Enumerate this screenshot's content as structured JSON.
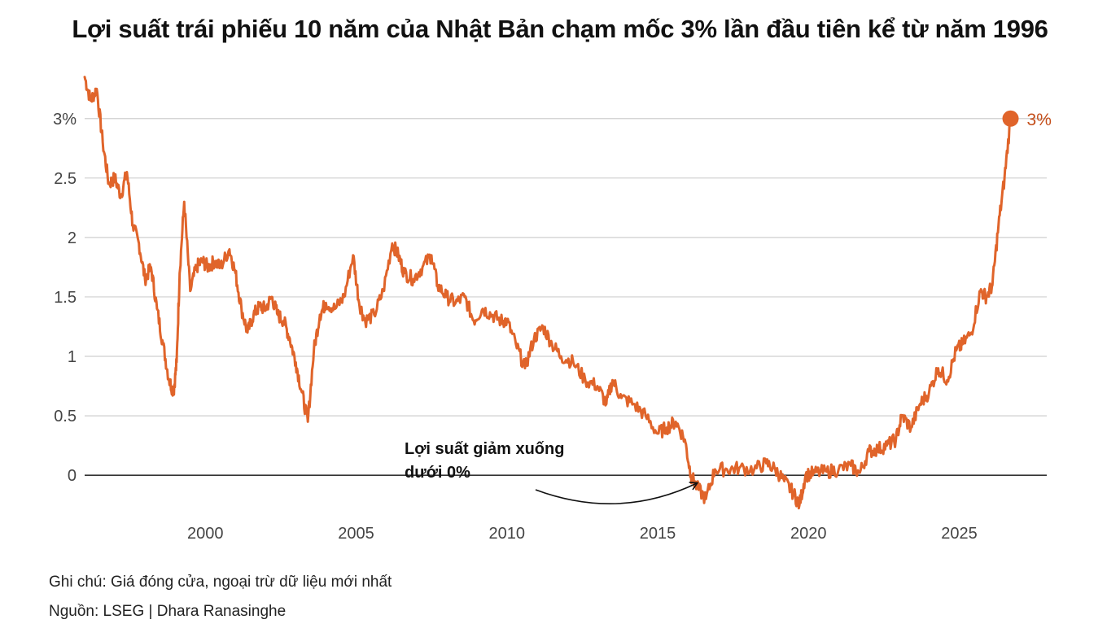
{
  "title": "Lợi suất trái phiếu 10 năm của Nhật Bản chạm mốc 3% lần đầu tiên kể từ năm 1996",
  "notes": {
    "note": "Ghi chú: Giá đóng cửa, ngoại trừ dữ liệu mới nhất",
    "source": "Nguồn: LSEG | Dhara Ranasinghe"
  },
  "annotation": {
    "line1": "Lợi suất giảm xuống",
    "line2": "dưới 0%"
  },
  "colors": {
    "series": "#e0642a",
    "end_label": "#c44e1a",
    "grid": "#cfcfcf",
    "zero_line": "#333333"
  },
  "chart_data": {
    "type": "line",
    "title": "Lợi suất trái phiếu 10 năm của Nhật Bản chạm mốc 3% lần đầu tiên kể từ năm 1996",
    "xlim": [
      1996.0,
      2027.9
    ],
    "ylim": [
      -0.3,
      3.45
    ],
    "x_ticks": [
      2000,
      2005,
      2010,
      2015,
      2020,
      2025
    ],
    "y_ticks": [
      {
        "value": 3,
        "label": "3%"
      },
      {
        "value": 2.5,
        "label": "2.5"
      },
      {
        "value": 2,
        "label": "2"
      },
      {
        "value": 1.5,
        "label": "1.5"
      },
      {
        "value": 1,
        "label": "1"
      },
      {
        "value": 0.5,
        "label": "0.5"
      },
      {
        "value": 0,
        "label": "0"
      }
    ],
    "grid": true,
    "end_label": "3%",
    "series": [
      {
        "x": [
          1996.0,
          1996.2,
          1996.4,
          1996.6,
          1996.8,
          1997.0,
          1997.2,
          1997.4,
          1997.6,
          1997.8,
          1998.0,
          1998.2,
          1998.4,
          1998.6,
          1998.8,
          1998.95,
          1999.05,
          1999.15,
          1999.3,
          1999.5,
          1999.7,
          1999.9,
          2000.1,
          2000.3,
          2000.5,
          2000.8,
          2001.0,
          2001.2,
          2001.4,
          2001.6,
          2001.8,
          2002.0,
          2002.2,
          2002.4,
          2002.6,
          2002.8,
          2003.0,
          2003.2,
          2003.4,
          2003.6,
          2003.8,
          2004.0,
          2004.3,
          2004.6,
          2004.9,
          2005.1,
          2005.3,
          2005.6,
          2005.9,
          2006.2,
          2006.4,
          2006.6,
          2006.9,
          2007.2,
          2007.5,
          2007.7,
          2008.0,
          2008.3,
          2008.6,
          2008.9,
          2009.2,
          2009.5,
          2009.8,
          2010.0,
          2010.3,
          2010.6,
          2010.9,
          2011.2,
          2011.5,
          2011.8,
          2012.2,
          2012.6,
          2013.0,
          2013.3,
          2013.5,
          2013.8,
          2014.2,
          2014.6,
          2015.0,
          2015.3,
          2015.6,
          2015.9,
          2016.1,
          2016.3,
          2016.6,
          2016.9,
          2017.3,
          2017.7,
          2018.2,
          2018.6,
          2018.9,
          2019.2,
          2019.5,
          2019.7,
          2019.9,
          2020.2,
          2020.6,
          2021.0,
          2021.4,
          2021.7,
          2022.0,
          2022.3,
          2022.6,
          2022.9,
          2023.1,
          2023.4,
          2023.7,
          2024.0,
          2024.3,
          2024.6,
          2024.9,
          2025.1,
          2025.4,
          2025.7,
          2025.9,
          2026.1,
          2026.3,
          2026.5,
          2026.7
        ],
        "y": [
          3.35,
          3.15,
          3.25,
          2.8,
          2.45,
          2.5,
          2.35,
          2.55,
          2.1,
          1.95,
          1.65,
          1.75,
          1.4,
          1.1,
          0.8,
          0.7,
          0.95,
          1.7,
          2.3,
          1.55,
          1.75,
          1.8,
          1.75,
          1.8,
          1.75,
          1.9,
          1.7,
          1.4,
          1.2,
          1.35,
          1.42,
          1.4,
          1.5,
          1.35,
          1.3,
          1.15,
          0.95,
          0.7,
          0.45,
          1.05,
          1.35,
          1.45,
          1.4,
          1.5,
          1.85,
          1.45,
          1.3,
          1.35,
          1.55,
          1.95,
          1.85,
          1.7,
          1.65,
          1.75,
          1.85,
          1.6,
          1.5,
          1.45,
          1.5,
          1.3,
          1.4,
          1.35,
          1.3,
          1.3,
          1.1,
          0.9,
          1.15,
          1.25,
          1.1,
          1.0,
          0.95,
          0.8,
          0.75,
          0.6,
          0.8,
          0.65,
          0.6,
          0.5,
          0.35,
          0.4,
          0.45,
          0.3,
          0.0,
          -0.1,
          -0.2,
          0.05,
          0.05,
          0.06,
          0.05,
          0.1,
          0.05,
          -0.05,
          -0.15,
          -0.25,
          0.0,
          0.02,
          0.03,
          0.05,
          0.08,
          0.02,
          0.2,
          0.22,
          0.25,
          0.3,
          0.5,
          0.4,
          0.6,
          0.7,
          0.9,
          0.8,
          1.05,
          1.1,
          1.2,
          1.55,
          1.5,
          1.6,
          2.1,
          2.5,
          3.0
        ]
      }
    ]
  }
}
